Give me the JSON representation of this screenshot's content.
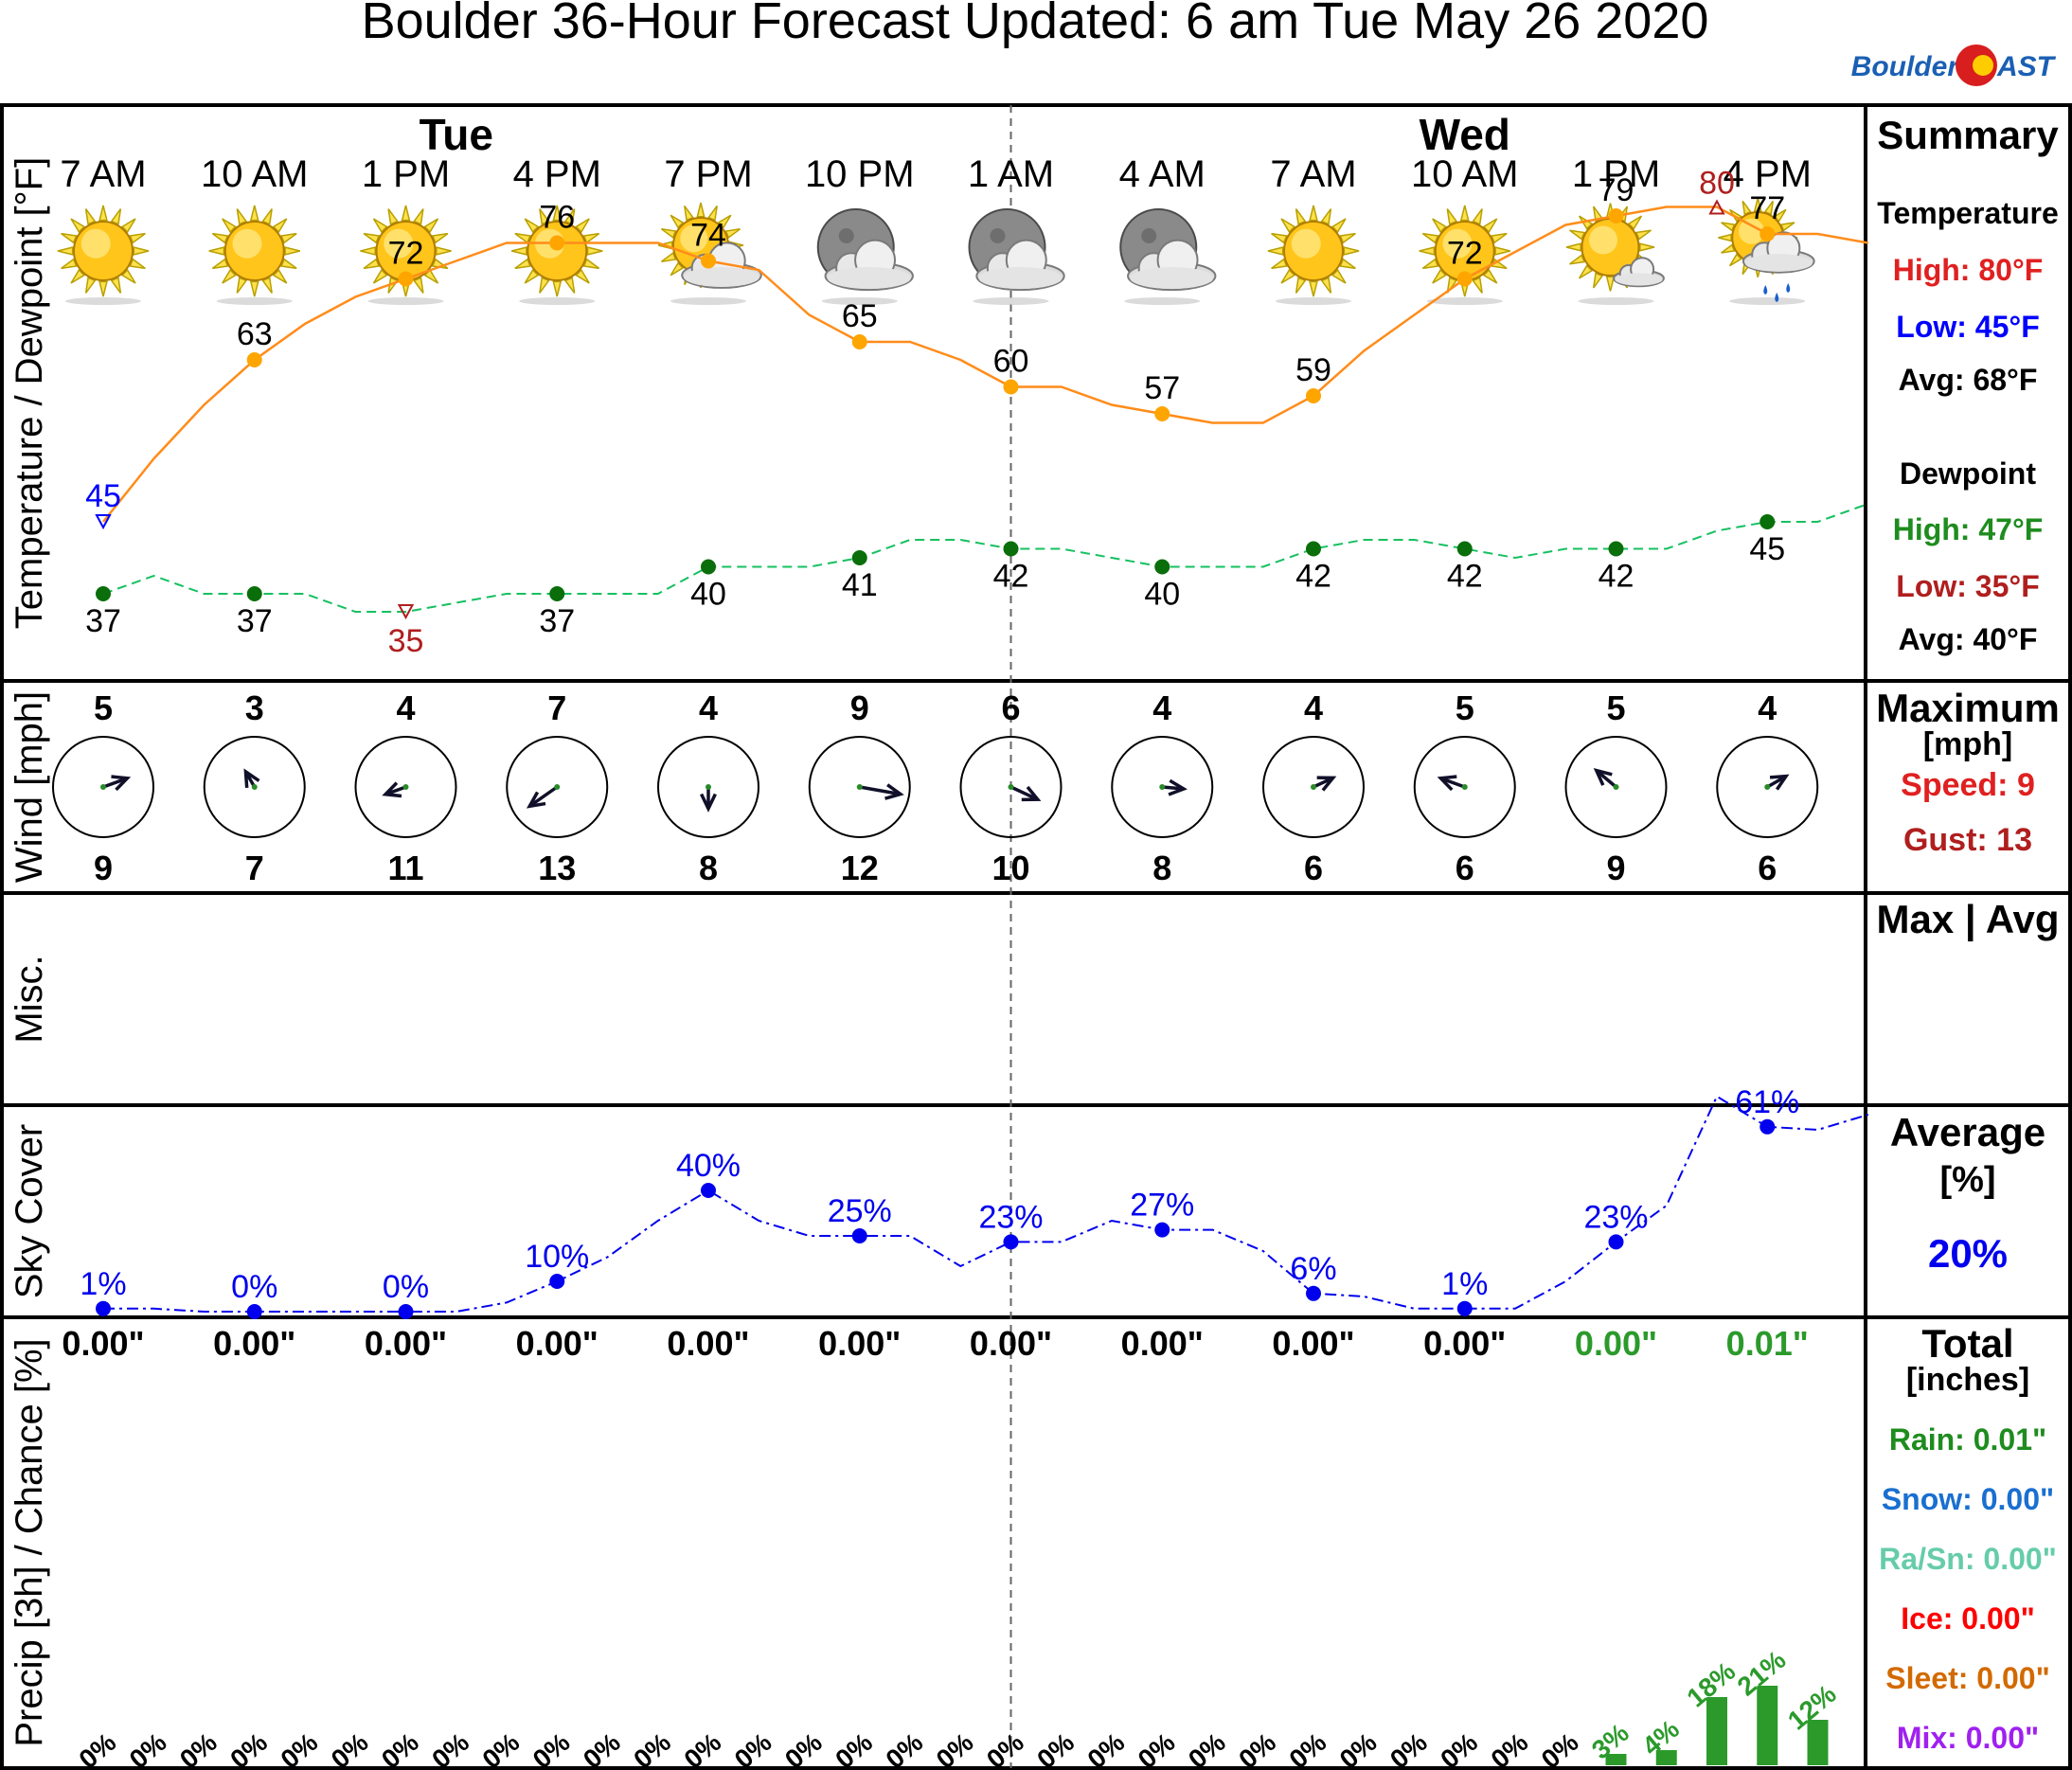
{
  "title": "Boulder 36-Hour Forecast Updated: 6 am Tue May 26 2020",
  "logo": {
    "left": "Boulder",
    "right": "AST"
  },
  "colors": {
    "temp": "#ff8c1a",
    "temp_dot": "#ffa500",
    "dew": "#16c060",
    "dew_dot": "#0a6e0a",
    "sky": "#0000ee",
    "precip": "#2b9a2b",
    "max_red": "#e02020",
    "low_blue": "#0000ff",
    "dark_red": "#b01e1e"
  },
  "days": [
    {
      "label": "Tue",
      "at_x": 3.5
    },
    {
      "label": "Wed",
      "at_x": 13.5
    }
  ],
  "day_divider_x": 9,
  "panel_labels": {
    "temp": "Temperature / Dewpoint [°F]",
    "wind": "Wind [mph]",
    "misc": "Misc.",
    "sky": "Sky Cover",
    "precip": "Precip [3h] / Chance [%]"
  },
  "summary": {
    "temp": {
      "header": "Summary",
      "temp_title": "Temperature",
      "temp_high": "High: 80°F",
      "temp_low": "Low: 45°F",
      "temp_avg": "Avg: 68°F",
      "dew_title": "Dewpoint",
      "dew_high": "High: 47°F",
      "dew_low": "Low: 35°F",
      "dew_avg": "Avg: 40°F"
    },
    "wind": {
      "title": "Maximum",
      "unit": "[mph]",
      "speed": "Speed: 9",
      "gust": "Gust: 13"
    },
    "misc": {
      "title": "Max | Avg"
    },
    "sky": {
      "title": "Average",
      "unit": "[%]",
      "value": "20%"
    },
    "precip": {
      "title": "Total",
      "unit": "[inches]",
      "rain": "Rain: 0.01\"",
      "snow": "Snow: 0.00\"",
      "rasn": "Ra/Sn: 0.00\"",
      "ice": "Ice: 0.00\"",
      "sleet": "Sleet: 0.00\"",
      "mix": "Mix: 0.00\""
    }
  },
  "summary_colors": {
    "rain": "#1e8c1e",
    "snow": "#1a6fd0",
    "rasn": "#66ccaa",
    "ice": "#ff0000",
    "sleet": "#d26a00",
    "mix": "#a020f0"
  },
  "chart_data": {
    "type": "line",
    "x_unit": "hours since 7 AM Tue",
    "x_range": [
      -0.5,
      17.5
    ],
    "labeled_times": [
      "7 AM",
      "10 AM",
      "1 PM",
      "4 PM",
      "7 PM",
      "10 PM",
      "1 AM",
      "4 AM",
      "7 AM",
      "10 AM",
      "1 PM",
      "4 PM"
    ],
    "labeled_x": [
      0,
      1.5,
      3,
      4.5,
      6,
      7.5,
      9,
      10.5,
      12,
      13.5,
      15,
      16.5
    ],
    "weather_icons": [
      "sun",
      "sun",
      "sun",
      "sun",
      "sun-cloud",
      "moon-cloud",
      "moon-cloud",
      "moon-cloud",
      "sun",
      "sun",
      "sun-small-cloud",
      "sun-rain-cloud"
    ],
    "temperature": {
      "name": "Temperature",
      "x": [
        0,
        0.5,
        1,
        1.5,
        2,
        2.5,
        3,
        3.5,
        4,
        4.5,
        5,
        5.5,
        6,
        6.5,
        7,
        7.5,
        8,
        8.5,
        9,
        9.5,
        10,
        10.5,
        11,
        11.5,
        12,
        12.5,
        13,
        13.5,
        14,
        14.5,
        15,
        15.5,
        16,
        16.5,
        17,
        17.5
      ],
      "values": [
        45,
        52,
        58,
        63,
        67,
        70,
        72,
        74,
        76,
        76,
        76,
        76,
        74,
        73,
        68,
        65,
        65,
        63,
        60,
        60,
        58,
        57,
        56,
        56,
        59,
        64,
        68,
        72,
        75,
        78,
        79,
        80,
        80,
        77,
        77,
        76
      ],
      "labels": [
        45,
        63,
        72,
        76,
        74,
        65,
        60,
        57,
        59,
        72,
        79,
        77
      ],
      "min_marker": {
        "x": 0,
        "value": 45
      },
      "max_marker": {
        "x": 16,
        "value": 80
      }
    },
    "dewpoint": {
      "name": "Dewpoint",
      "x": [
        0,
        0.5,
        1,
        1.5,
        2,
        2.5,
        3,
        3.5,
        4,
        4.5,
        5,
        5.5,
        6,
        6.5,
        7,
        7.5,
        8,
        8.5,
        9,
        9.5,
        10,
        10.5,
        11,
        11.5,
        12,
        12.5,
        13,
        13.5,
        14,
        14.5,
        15,
        15.5,
        16,
        16.5,
        17,
        17.5
      ],
      "values": [
        37,
        39,
        37,
        37,
        37,
        35,
        35,
        36,
        37,
        37,
        37,
        37,
        40,
        40,
        40,
        41,
        43,
        43,
        42,
        42,
        41,
        40,
        40,
        40,
        42,
        43,
        43,
        42,
        41,
        42,
        42,
        42,
        44,
        45,
        45,
        47
      ],
      "labels": [
        37,
        37,
        35,
        37,
        40,
        41,
        42,
        40,
        42,
        42,
        42,
        45
      ],
      "min_marker": {
        "x": 3,
        "value": 35
      }
    },
    "temp_ylim": [
      33,
      85
    ],
    "wind": {
      "speed": [
        5,
        3,
        4,
        7,
        4,
        9,
        6,
        4,
        4,
        5,
        5,
        4
      ],
      "gust": [
        9,
        7,
        11,
        13,
        8,
        12,
        10,
        8,
        6,
        6,
        9,
        6
      ],
      "to_direction_deg": [
        70,
        330,
        250,
        235,
        180,
        100,
        115,
        95,
        65,
        290,
        310,
        60
      ]
    },
    "sky_cover": {
      "x": [
        0,
        0.5,
        1,
        1.5,
        2,
        2.5,
        3,
        3.5,
        4,
        4.5,
        5,
        5.5,
        6,
        6.5,
        7,
        7.5,
        8,
        8.5,
        9,
        9.5,
        10,
        10.5,
        11,
        11.5,
        12,
        12.5,
        13,
        13.5,
        14,
        14.5,
        15,
        15.5,
        16,
        16.5,
        17,
        17.5
      ],
      "values": [
        1,
        1,
        0,
        0,
        0,
        0,
        0,
        0,
        3,
        10,
        18,
        30,
        40,
        30,
        25,
        25,
        25,
        15,
        23,
        23,
        30,
        27,
        27,
        20,
        6,
        5,
        1,
        1,
        1,
        10,
        23,
        35,
        71,
        61,
        60,
        65
      ],
      "labels": [
        "1%",
        "0%",
        "0%",
        "10%",
        "40%",
        "25%",
        "23%",
        "27%",
        "6%",
        "1%",
        "23%",
        "61%"
      ],
      "ylim": [
        0,
        100
      ]
    },
    "precip": {
      "amounts_3h": [
        "0.00\"",
        "0.00\"",
        "0.00\"",
        "0.00\"",
        "0.00\"",
        "0.00\"",
        "0.00\"",
        "0.00\"",
        "0.00\"",
        "0.00\"",
        "0.00\"",
        "0.01\""
      ],
      "chance_x": [
        0,
        0.5,
        1,
        1.5,
        2,
        2.5,
        3,
        3.5,
        4,
        4.5,
        5,
        5.5,
        6,
        6.5,
        7,
        7.5,
        8,
        8.5,
        9,
        9.5,
        10,
        10.5,
        11,
        11.5,
        12,
        12.5,
        13,
        13.5,
        14,
        14.5,
        15,
        15.5,
        16,
        16.5,
        17
      ],
      "chance_pct": [
        0,
        0,
        0,
        0,
        0,
        0,
        0,
        0,
        0,
        0,
        0,
        0,
        0,
        0,
        0,
        0,
        0,
        0,
        0,
        0,
        0,
        0,
        0,
        0,
        0,
        0,
        0,
        0,
        0,
        0,
        3,
        4,
        18,
        21,
        12
      ],
      "ylim": [
        0,
        100
      ]
    }
  }
}
